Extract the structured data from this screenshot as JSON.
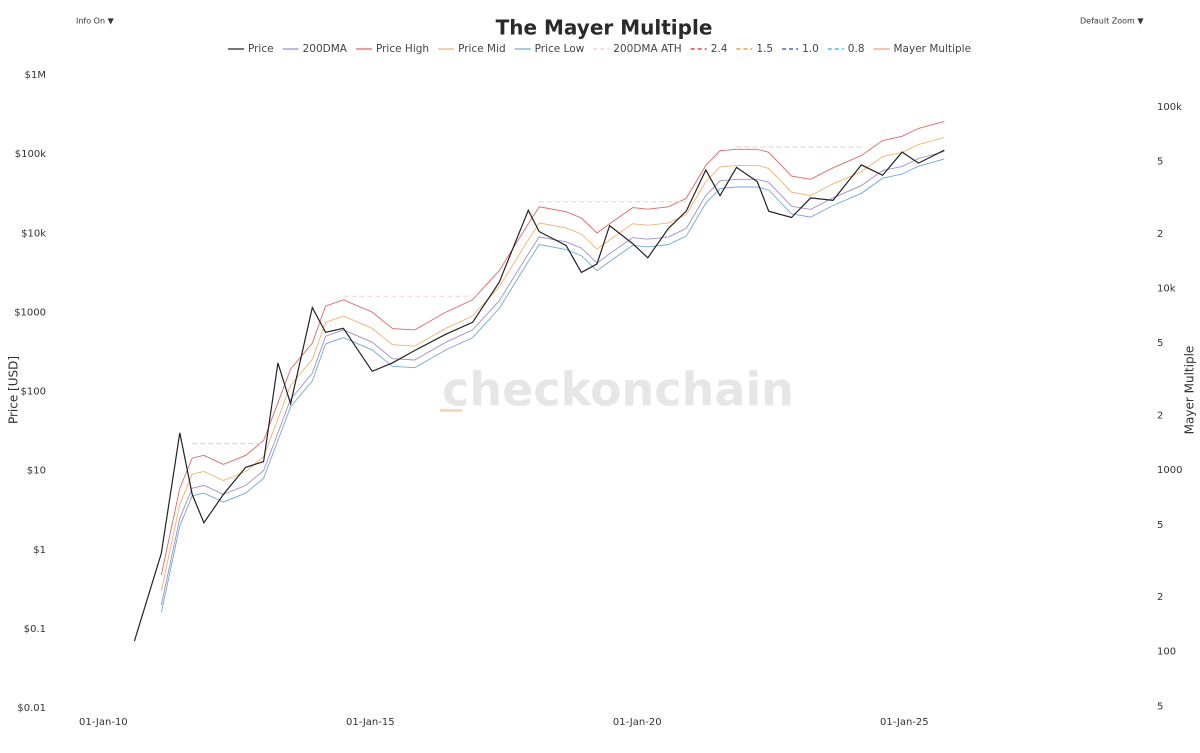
{
  "chart_data": {
    "type": "line",
    "title": "The Mayer Multiple",
    "controls": [
      "Info On ▼",
      "Default Zoom ▼"
    ],
    "watermark": "checkonchain",
    "y_label": "Price [USD]",
    "y2_label": "Mayer Multiple",
    "log_scale": true,
    "x": [
      "2010-08-01",
      "2010-11-01",
      "2011-02-01",
      "2011-06-08",
      "2011-09-01",
      "2011-11-20",
      "2012-04-01",
      "2012-09-01",
      "2013-01-01",
      "2013-04-09",
      "2013-07-05",
      "2013-11-30",
      "2014-03-01",
      "2014-07-01",
      "2015-01-14",
      "2015-06-01",
      "2015-11-01",
      "2016-06-01",
      "2016-12-01",
      "2017-06-01",
      "2017-12-17",
      "2018-03-01",
      "2018-09-01",
      "2018-12-15",
      "2019-04-01",
      "2019-06-26",
      "2019-12-01",
      "2020-03-13",
      "2020-08-01",
      "2020-12-01",
      "2021-04-14",
      "2021-07-20",
      "2021-11-10",
      "2022-04-01",
      "2022-06-18",
      "2022-11-21",
      "2023-04-01",
      "2023-09-01",
      "2024-03-13",
      "2024-08-05",
      "2024-12-17",
      "2025-04-08",
      "2025-10-01"
    ],
    "xlim": [
      "2009-01-01",
      "2029-06-01"
    ],
    "xticks": [
      {
        "value": "2010-01-01",
        "label": "01-Jan-10"
      },
      {
        "value": "2015-01-01",
        "label": "01-Jan-15"
      },
      {
        "value": "2020-01-01",
        "label": "01-Jan-20"
      },
      {
        "value": "2025-01-01",
        "label": "01-Jan-25"
      }
    ],
    "ylim": [
      0.01,
      1000000
    ],
    "yticks": [
      {
        "value": 0.01,
        "label": "$0.01"
      },
      {
        "value": 0.1,
        "label": "$0.1"
      },
      {
        "value": 1,
        "label": "$1"
      },
      {
        "value": 10,
        "label": "$10"
      },
      {
        "value": 100,
        "label": "$100"
      },
      {
        "value": 1000,
        "label": "$1000"
      },
      {
        "value": 10000,
        "label": "$10k"
      },
      {
        "value": 100000,
        "label": "$100k"
      },
      {
        "value": 1000000,
        "label": "$1M"
      }
    ],
    "y2lim": [
      49,
      150000
    ],
    "y2ticks": [
      {
        "value": 100000,
        "label": "100k"
      },
      {
        "value": 50000,
        "label": "5"
      },
      {
        "value": 20000,
        "label": "2"
      },
      {
        "value": 10000,
        "label": "10k"
      },
      {
        "value": 5000,
        "label": "5"
      },
      {
        "value": 2000,
        "label": "2"
      },
      1000,
      {
        "value": 500,
        "label": "5"
      },
      {
        "value": 200,
        "label": "2"
      },
      100,
      {
        "value": 50,
        "label": "5"
      }
    ],
    "series": [
      {
        "name": "Price",
        "color": "#222222",
        "values": [
          0.07,
          0.25,
          0.9,
          30,
          5,
          2.2,
          5,
          11,
          13,
          230,
          70,
          1150,
          560,
          630,
          180,
          230,
          330,
          530,
          750,
          2400,
          19500,
          10500,
          7000,
          3200,
          4100,
          12500,
          7400,
          4900,
          11500,
          19000,
          63000,
          29800,
          68000,
          45000,
          19000,
          15800,
          28000,
          26000,
          73000,
          54000,
          106000,
          77000,
          112000
        ]
      },
      {
        "name": "200DMA",
        "color": "#9d8fd0",
        "values": [
          null,
          null,
          0.2,
          2.5,
          6,
          6.5,
          5,
          6.5,
          10,
          30,
          80,
          170,
          500,
          600,
          420,
          260,
          250,
          420,
          600,
          1400,
          5500,
          9000,
          7800,
          6500,
          4200,
          5500,
          8800,
          8400,
          9000,
          11500,
          30000,
          46000,
          48000,
          48000,
          44000,
          22000,
          20000,
          28000,
          40000,
          62000,
          70000,
          88000,
          108000
        ]
      },
      {
        "name": "Price High",
        "color": "#e06666",
        "values": [
          null,
          null,
          0.48,
          6,
          14.4,
          15.6,
          12,
          15.6,
          24,
          72,
          192,
          408,
          1200,
          1440,
          1008,
          624,
          600,
          1008,
          1440,
          3360,
          13200,
          21600,
          18720,
          15600,
          10080,
          13200,
          21120,
          20160,
          21600,
          27600,
          72000,
          110400,
          115200,
          115200,
          105600,
          52800,
          48000,
          67200,
          96000,
          148800,
          168000,
          211200,
          259200
        ]
      },
      {
        "name": "Price Mid",
        "color": "#f6b26b",
        "values": [
          null,
          null,
          0.3,
          3.75,
          9,
          9.75,
          7.5,
          9.75,
          15,
          45,
          120,
          255,
          750,
          900,
          630,
          390,
          375,
          630,
          900,
          2100,
          8250,
          13500,
          11700,
          9750,
          6300,
          8250,
          13200,
          12600,
          13500,
          17250,
          45000,
          69000,
          72000,
          72000,
          66000,
          33000,
          30000,
          42000,
          60000,
          93000,
          105000,
          132000,
          162000
        ]
      },
      {
        "name": "Price Low",
        "color": "#6fa8dc",
        "values": [
          null,
          null,
          0.16,
          2,
          4.8,
          5.2,
          4,
          5.2,
          8,
          24,
          64,
          136,
          400,
          480,
          336,
          208,
          200,
          336,
          480,
          1120,
          4400,
          7200,
          6240,
          5200,
          3360,
          4400,
          7040,
          6720,
          7200,
          9200,
          24000,
          36800,
          38400,
          38400,
          35200,
          17600,
          16000,
          22400,
          32000,
          49600,
          56000,
          70400,
          86400
        ]
      },
      {
        "name": "200DMA ATH",
        "color": "#f0c8c8",
        "dash": true,
        "values": [
          null,
          null,
          null,
          null,
          22,
          22,
          22,
          22,
          22,
          null,
          null,
          null,
          null,
          1600,
          1600,
          1600,
          1600,
          1600,
          1600,
          null,
          null,
          25000,
          25000,
          25000,
          25000,
          25000,
          25000,
          25000,
          25000,
          25000,
          null,
          null,
          123000,
          123000,
          123000,
          123000,
          123000,
          123000,
          123000,
          null,
          null,
          null,
          null
        ]
      }
    ],
    "legend_only": [
      {
        "name": "2.4",
        "color": "#d62728",
        "dash": true
      },
      {
        "name": "1.5",
        "color": "#ff7f0e",
        "dash": true
      },
      {
        "name": "1.0",
        "color": "#1f4fc8",
        "dash": true
      },
      {
        "name": "0.8",
        "color": "#17becf",
        "dash": true
      },
      {
        "name": "Mayer Multiple",
        "color": "#f4a582",
        "dash": false
      }
    ],
    "legend_position": "top"
  }
}
